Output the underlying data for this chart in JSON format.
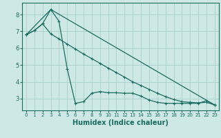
{
  "xlabel": "Humidex (Indice chaleur)",
  "bg_color": "#cde8e5",
  "grid_color": "#a8ceca",
  "line_color": "#1a6b60",
  "xlim": [
    -0.5,
    23.5
  ],
  "ylim": [
    2.3,
    8.7
  ],
  "yticks": [
    3,
    4,
    5,
    6,
    7,
    8
  ],
  "xticks": [
    0,
    1,
    2,
    3,
    4,
    5,
    6,
    7,
    8,
    9,
    10,
    11,
    12,
    13,
    14,
    15,
    16,
    17,
    18,
    19,
    20,
    21,
    22,
    23
  ],
  "line1_x": [
    0,
    1,
    2,
    3,
    4,
    5,
    6,
    7,
    8,
    9,
    10,
    11,
    12,
    13,
    14,
    15,
    16,
    17,
    18,
    19,
    20,
    21,
    22,
    23
  ],
  "line1_y": [
    6.8,
    7.05,
    7.45,
    6.85,
    6.55,
    6.25,
    5.95,
    5.65,
    5.38,
    5.1,
    4.82,
    4.55,
    4.28,
    4.0,
    3.78,
    3.55,
    3.32,
    3.12,
    2.95,
    2.82,
    2.78,
    2.75,
    2.78,
    2.62
  ],
  "line2_x": [
    0,
    3,
    23
  ],
  "line2_y": [
    6.8,
    8.3,
    2.62
  ],
  "line3_x": [
    0,
    1,
    2,
    3,
    4,
    5,
    6,
    7,
    8,
    9,
    10,
    11,
    12,
    13,
    14,
    15,
    16,
    17,
    18,
    19,
    20,
    21,
    22,
    23
  ],
  "line3_y": [
    6.8,
    7.05,
    7.45,
    8.3,
    7.6,
    4.78,
    2.72,
    2.82,
    3.32,
    3.42,
    3.35,
    3.35,
    3.32,
    3.32,
    3.15,
    2.92,
    2.78,
    2.72,
    2.72,
    2.72,
    2.72,
    2.72,
    2.88,
    2.62
  ]
}
